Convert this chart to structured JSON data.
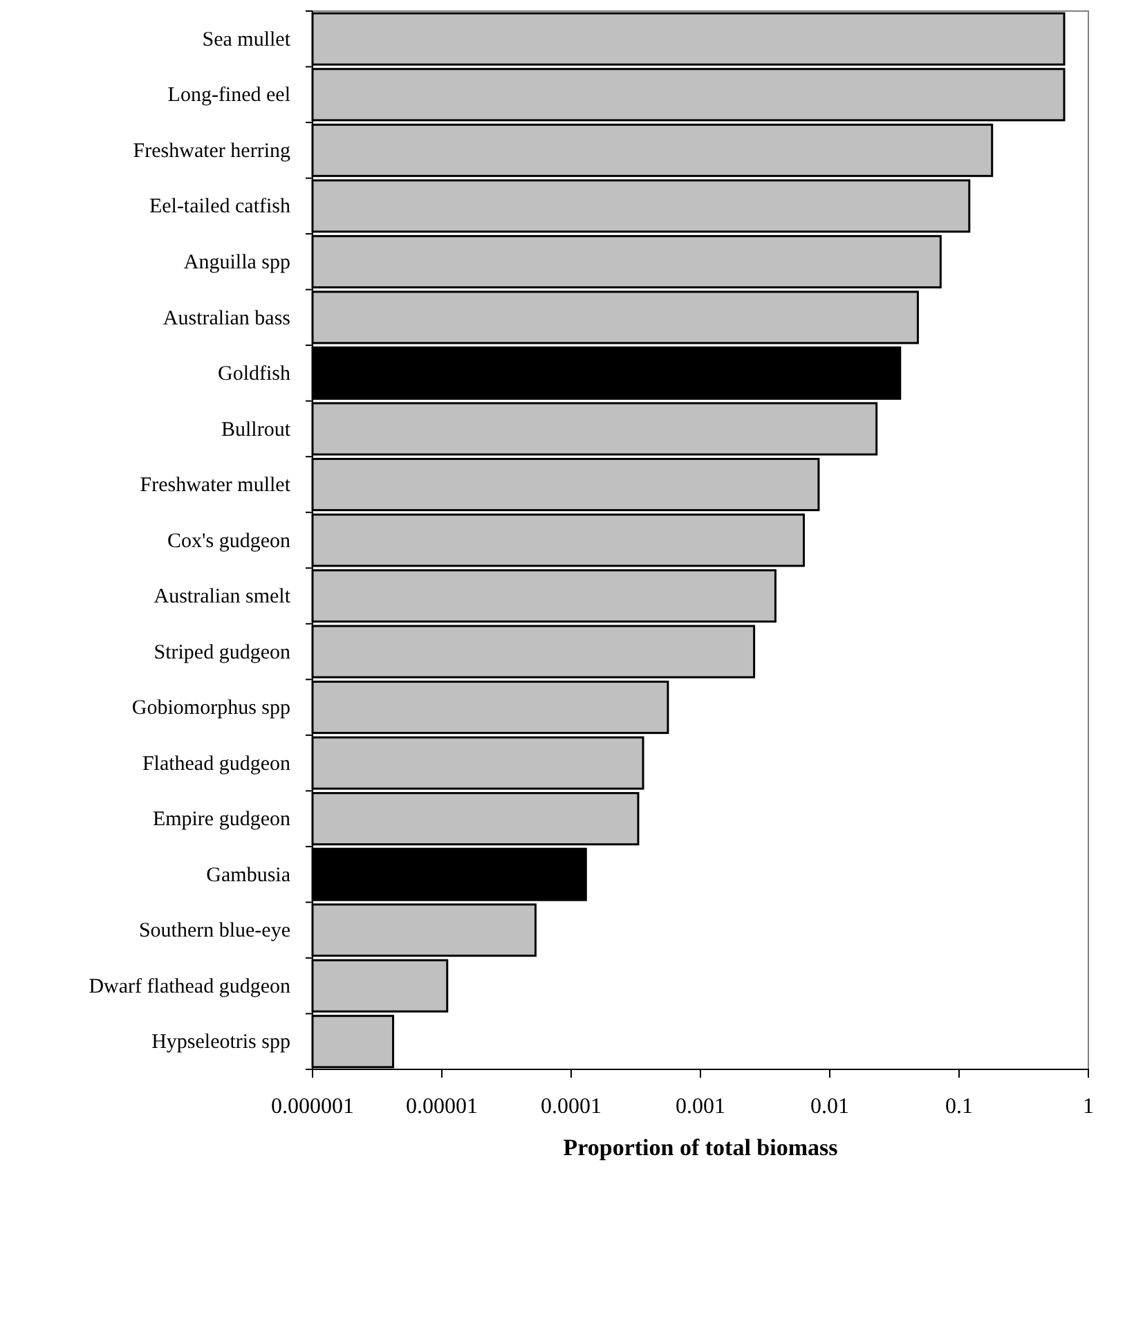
{
  "chart_data": {
    "type": "bar",
    "orientation": "horizontal",
    "log": "x",
    "xlabel": "Proportion of total biomass",
    "categories": [
      "Sea mullet",
      "Long-fined eel",
      "Freshwater herring",
      "Eel-tailed catfish",
      "Anguilla spp",
      "Australian bass",
      "Goldfish",
      "Bullrout",
      "Freshwater mullet",
      "Cox's gudgeon",
      "Australian smelt",
      "Striped gudgeon",
      "Gobiomorphus spp",
      "Flathead gudgeon",
      "Empire gudgeon",
      "Gambusia",
      "Southern blue-eye",
      "Dwarf flathead gudgeon",
      "Hypseleotris spp"
    ],
    "values": [
      0.65,
      0.65,
      0.18,
      0.12,
      0.072,
      0.048,
      0.035,
      0.023,
      0.0082,
      0.0063,
      0.0038,
      0.0026,
      0.00056,
      0.00036,
      0.00033,
      0.00013,
      5.3e-05,
      1.1e-05,
      4.2e-06
    ],
    "colors": [
      "#c0c0c0",
      "#c0c0c0",
      "#c0c0c0",
      "#c0c0c0",
      "#c0c0c0",
      "#c0c0c0",
      "#000000",
      "#c0c0c0",
      "#c0c0c0",
      "#c0c0c0",
      "#c0c0c0",
      "#c0c0c0",
      "#c0c0c0",
      "#c0c0c0",
      "#c0c0c0",
      "#000000",
      "#c0c0c0",
      "#c0c0c0",
      "#c0c0c0"
    ],
    "xlim": [
      1e-06,
      1
    ],
    "xticks": [
      {
        "value": 1e-06,
        "label": "0.000001"
      },
      {
        "value": 1e-05,
        "label": "0.00001"
      },
      {
        "value": 0.0001,
        "label": "0.0001"
      },
      {
        "value": 0.001,
        "label": "0.001"
      },
      {
        "value": 0.01,
        "label": "0.01"
      },
      {
        "value": 0.1,
        "label": "0.1"
      },
      {
        "value": 1,
        "label": "1"
      }
    ],
    "grid": false
  }
}
